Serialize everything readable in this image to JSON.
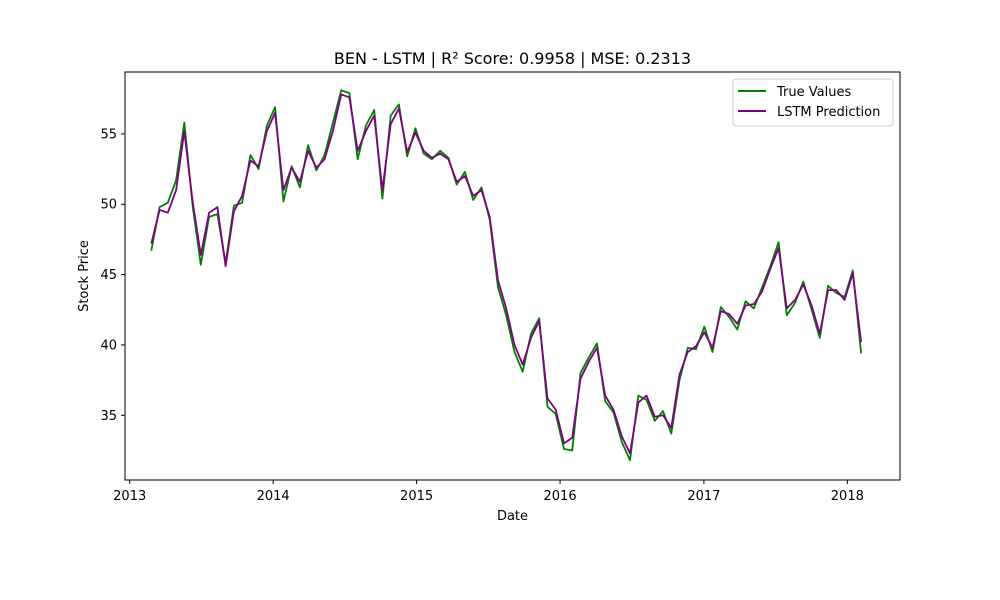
{
  "chart_data": {
    "type": "line",
    "title": "BEN - LSTM | R² Score: 0.9958 | MSE: 0.2313",
    "xlabel": "Date",
    "ylabel": "Stock Price",
    "xlim": [
      "2012-12-20",
      "2018-05-15"
    ],
    "ylim": [
      30.4,
      59.4
    ],
    "x_ticks": [
      "2013-01-01",
      "2014-01-01",
      "2015-01-01",
      "2016-01-01",
      "2017-01-01",
      "2018-01-01"
    ],
    "x_tick_labels": [
      "2013",
      "2014",
      "2015",
      "2016",
      "2017",
      "2018"
    ],
    "y_ticks": [
      35,
      40,
      45,
      50,
      55
    ],
    "y_tick_labels": [
      "35",
      "40",
      "45",
      "50",
      "55"
    ],
    "grid": false,
    "legend_position": "top-right",
    "x": [
      "2013-02-25",
      "2013-03-18",
      "2013-04-08",
      "2013-04-29",
      "2013-05-20",
      "2013-06-10",
      "2013-07-01",
      "2013-07-22",
      "2013-08-12",
      "2013-09-02",
      "2013-09-23",
      "2013-10-14",
      "2013-11-04",
      "2013-11-25",
      "2013-12-16",
      "2014-01-06",
      "2014-01-27",
      "2014-02-17",
      "2014-03-10",
      "2014-03-31",
      "2014-04-21",
      "2014-05-12",
      "2014-06-02",
      "2014-06-23",
      "2014-07-14",
      "2014-08-04",
      "2014-08-25",
      "2014-09-15",
      "2014-10-06",
      "2014-10-27",
      "2014-11-17",
      "2014-12-08",
      "2014-12-29",
      "2015-01-19",
      "2015-02-09",
      "2015-03-02",
      "2015-03-23",
      "2015-04-13",
      "2015-05-04",
      "2015-05-25",
      "2015-06-15",
      "2015-07-06",
      "2015-07-27",
      "2015-08-17",
      "2015-09-07",
      "2015-09-28",
      "2015-10-19",
      "2015-11-09",
      "2015-11-30",
      "2015-12-21",
      "2016-01-11",
      "2016-02-01",
      "2016-02-22",
      "2016-03-14",
      "2016-04-04",
      "2016-04-25",
      "2016-05-16",
      "2016-06-06",
      "2016-06-27",
      "2016-07-18",
      "2016-08-08",
      "2016-08-29",
      "2016-09-19",
      "2016-10-10",
      "2016-10-31",
      "2016-11-21",
      "2016-12-12",
      "2017-01-02",
      "2017-01-23",
      "2017-02-13",
      "2017-03-06",
      "2017-03-27",
      "2017-04-17",
      "2017-05-08",
      "2017-05-29",
      "2017-06-19",
      "2017-07-10",
      "2017-07-31",
      "2017-08-21",
      "2017-09-11",
      "2017-10-02",
      "2017-10-23",
      "2017-11-13",
      "2017-12-04",
      "2017-12-25",
      "2018-01-15",
      "2018-02-05"
    ],
    "series": [
      {
        "name": "True Values",
        "color": "#008000",
        "values": [
          46.7,
          49.8,
          50.1,
          51.7,
          55.8,
          49.9,
          45.7,
          49.1,
          49.3,
          45.8,
          49.9,
          50.1,
          53.5,
          52.5,
          55.6,
          56.9,
          50.2,
          52.7,
          51.2,
          54.2,
          52.4,
          53.5,
          55.8,
          58.1,
          57.9,
          53.2,
          55.6,
          56.7,
          50.4,
          56.3,
          57.1,
          53.4,
          55.4,
          53.6,
          53.2,
          53.8,
          53.3,
          51.4,
          52.3,
          50.3,
          51.2,
          48.9,
          44.1,
          42.1,
          39.5,
          38.1,
          40.8,
          41.9,
          35.6,
          35.1,
          32.6,
          32.5,
          38.0,
          39.1,
          40.1,
          36.0,
          35.2,
          33.1,
          31.8,
          36.4,
          36.1,
          34.6,
          35.3,
          33.7,
          37.5,
          39.8,
          39.7,
          41.3,
          39.5,
          42.7,
          42.0,
          41.1,
          43.1,
          42.6,
          44.1,
          45.6,
          47.3,
          42.1,
          43.0,
          44.5,
          42.5,
          40.5,
          44.2,
          43.7,
          43.4,
          45.3,
          39.4
        ]
      },
      {
        "name": "LSTM Prediction",
        "color": "#800080",
        "values": [
          47.2,
          49.6,
          49.4,
          51.0,
          55.2,
          50.2,
          46.4,
          49.4,
          49.8,
          45.6,
          49.5,
          50.6,
          53.1,
          52.7,
          55.2,
          56.5,
          51.0,
          52.6,
          51.6,
          53.8,
          52.6,
          53.2,
          55.2,
          57.8,
          57.6,
          53.8,
          55.2,
          56.3,
          51.0,
          55.7,
          56.8,
          53.7,
          55.1,
          53.8,
          53.3,
          53.6,
          53.2,
          51.6,
          52.0,
          50.6,
          51.0,
          49.1,
          44.6,
          42.6,
          40.0,
          38.6,
          40.5,
          41.7,
          36.2,
          35.4,
          33.0,
          33.4,
          37.6,
          38.8,
          39.8,
          36.4,
          35.4,
          33.5,
          32.3,
          35.9,
          36.4,
          34.9,
          35.0,
          34.1,
          37.9,
          39.5,
          39.9,
          40.9,
          39.8,
          42.4,
          42.2,
          41.5,
          42.8,
          42.9,
          43.8,
          45.4,
          46.9,
          42.6,
          43.2,
          44.3,
          42.8,
          40.8,
          43.9,
          43.9,
          43.2,
          45.1,
          40.2
        ]
      }
    ]
  }
}
